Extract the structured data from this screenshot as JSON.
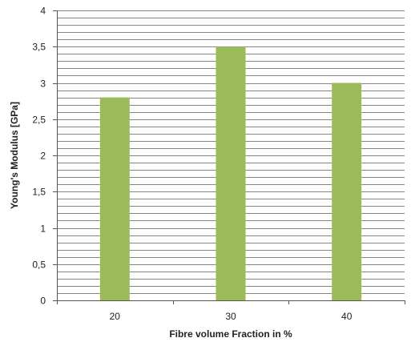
{
  "chart_data": {
    "type": "bar",
    "title": "",
    "xlabel": "Fibre volume Fraction  in %",
    "ylabel": "Young's Modulus  [GPa]",
    "categories": [
      "20",
      "30",
      "40"
    ],
    "values": [
      2.8,
      3.5,
      3.0
    ],
    "ylim": [
      0,
      4
    ],
    "y_ticks": [
      0,
      0.5,
      1,
      1.5,
      2,
      2.5,
      3,
      3.5,
      4
    ],
    "y_tick_labels": [
      "0",
      "0,5",
      "1",
      "1,5",
      "2",
      "2,5",
      "3",
      "3,5",
      "4"
    ],
    "minor_grid_step": 0.1,
    "grid": true,
    "legend": "none",
    "bar_color": "#9bbb59",
    "grid_color": "#868686"
  }
}
